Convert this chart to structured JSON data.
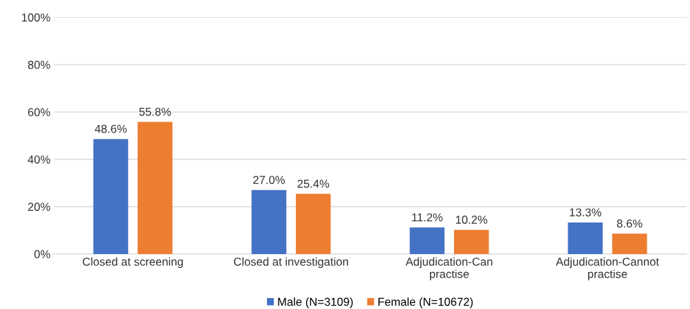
{
  "chart_data": {
    "type": "bar",
    "categories": [
      "Closed at screening",
      "Closed at investigation",
      "Adjudication-Can\npractise",
      "Adjudication-Cannot\npractise"
    ],
    "series": [
      {
        "name": "Male (N=3109)",
        "color": "#4472c4",
        "values": [
          48.6,
          27.0,
          11.2,
          13.3
        ],
        "value_labels": [
          "48.6%",
          "27.0%",
          "11.2%",
          "13.3%"
        ]
      },
      {
        "name": "Female (N=10672)",
        "color": "#ed7d31",
        "values": [
          55.8,
          25.4,
          10.2,
          8.6
        ],
        "value_labels": [
          "55.8%",
          "25.4%",
          "10.2%",
          "8.6%"
        ]
      }
    ],
    "ylim": [
      0,
      100
    ],
    "yticks": [
      {
        "value": 0,
        "label": "0%"
      },
      {
        "value": 20,
        "label": "20%"
      },
      {
        "value": 40,
        "label": "40%"
      },
      {
        "value": 60,
        "label": "60%"
      },
      {
        "value": 80,
        "label": "80%"
      },
      {
        "value": 100,
        "label": "100%"
      }
    ],
    "grid": "y",
    "legend": "bottom"
  }
}
